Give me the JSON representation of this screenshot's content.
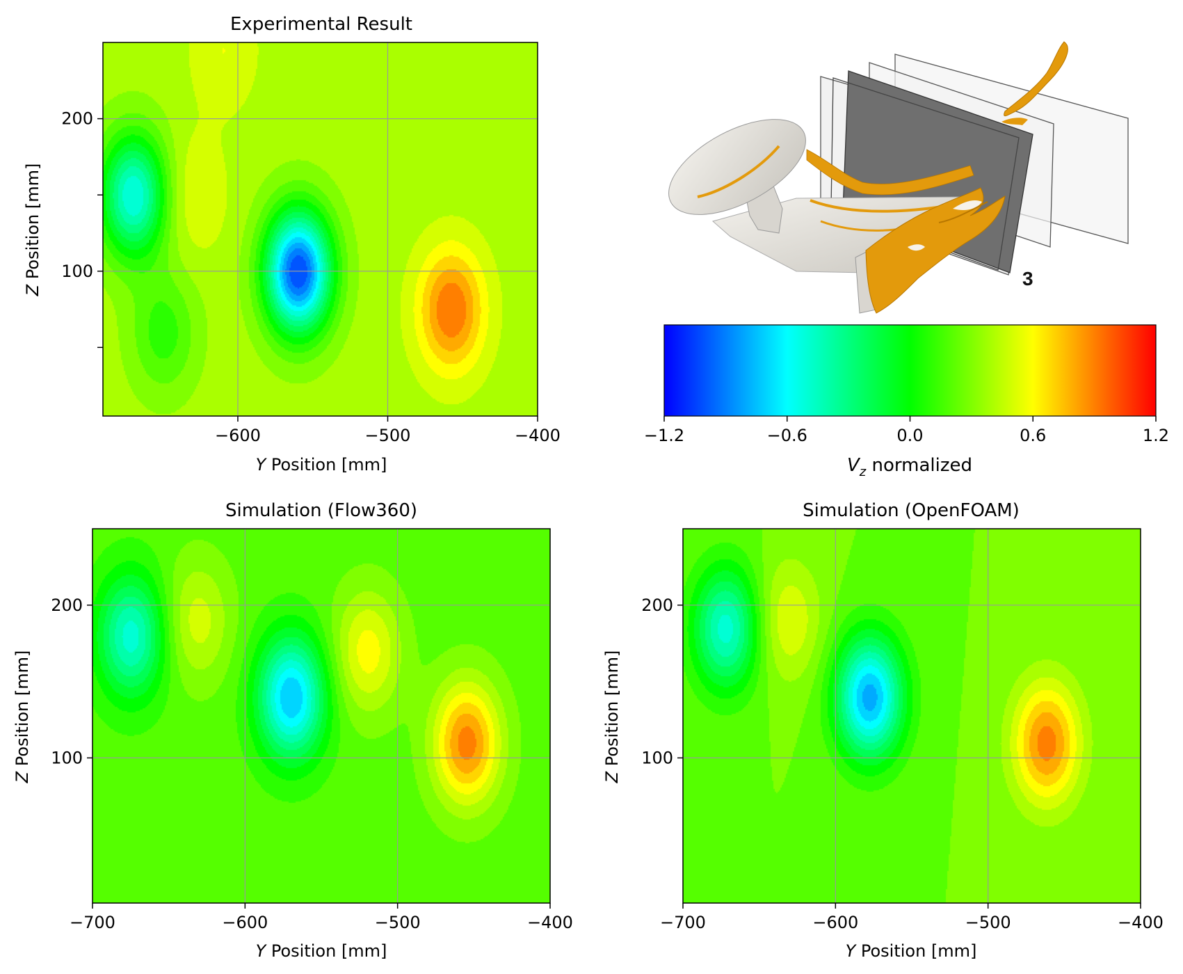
{
  "chart_data": [
    {
      "type": "heatmap",
      "title": "Experimental Result",
      "xlabel_italic": "Y",
      "xlabel": " Position [mm]",
      "ylabel_italic": "Z",
      "ylabel": " Position [mm]",
      "xlim": [
        -690,
        -400
      ],
      "ylim": [
        5,
        250
      ],
      "xticks": [
        -600,
        -500,
        -400
      ],
      "xtick_labels": [
        "−600",
        "−500",
        "−400"
      ],
      "yticks": [
        100,
        200
      ],
      "ytick_labels": [
        "100",
        "200"
      ],
      "minor_yticks": [
        50,
        150
      ],
      "grid": true,
      "background_value": 0.4,
      "features": [
        {
          "x": -670,
          "y": 150,
          "value": -0.55
        },
        {
          "x": -630,
          "y": 150,
          "value": 0.55
        },
        {
          "x": -560,
          "y": 100,
          "value": -1.05
        },
        {
          "x": -458,
          "y": 75,
          "value": 0.95
        },
        {
          "x": -610,
          "y": 245,
          "value": 0.55
        },
        {
          "x": -650,
          "y": 60,
          "value": 0.1
        }
      ]
    },
    {
      "type": "heatmap",
      "title": "Simulation (Flow360)",
      "xlabel_italic": "Y",
      "xlabel": " Position [mm]",
      "ylabel_italic": "Z",
      "ylabel": " Position [mm]",
      "xlim": [
        -700,
        -400
      ],
      "ylim": [
        5,
        250
      ],
      "xticks": [
        -700,
        -600,
        -500,
        -400
      ],
      "xtick_labels": [
        "−700",
        "−600",
        "−500",
        "−400"
      ],
      "yticks": [
        100,
        200
      ],
      "ytick_labels": [
        "100",
        "200"
      ],
      "grid": true,
      "background_value": 0.2,
      "features": [
        {
          "x": -675,
          "y": 180,
          "value": -0.5
        },
        {
          "x": -632,
          "y": 190,
          "value": 0.5
        },
        {
          "x": -570,
          "y": 140,
          "value": -0.75
        },
        {
          "x": -520,
          "y": 170,
          "value": 0.6
        },
        {
          "x": -455,
          "y": 110,
          "value": 0.9
        }
      ]
    },
    {
      "type": "heatmap",
      "title": "Simulation (OpenFOAM)",
      "xlabel_italic": "Y",
      "xlabel": " Position [mm]",
      "ylabel_italic": "Z",
      "ylabel": " Position [mm]",
      "xlim": [
        -700,
        -400
      ],
      "ylim": [
        5,
        250
      ],
      "xticks": [
        -700,
        -600,
        -500,
        -400
      ],
      "xtick_labels": [
        "−700",
        "−600",
        "−500",
        "−400"
      ],
      "yticks": [
        100,
        200
      ],
      "ytick_labels": [
        "100",
        "200"
      ],
      "grid": true,
      "background_value": 0.25,
      "features": [
        {
          "x": -672,
          "y": 185,
          "value": -0.5
        },
        {
          "x": -632,
          "y": 190,
          "value": 0.55
        },
        {
          "x": -578,
          "y": 140,
          "value": -0.8
        },
        {
          "x": -462,
          "y": 110,
          "value": 0.9
        }
      ]
    }
  ],
  "colorbar": {
    "label_italic_base": "V",
    "label_subscript": "z",
    "label_suffix": " normalized",
    "range": [
      -1.2,
      1.2
    ],
    "ticks": [
      -1.2,
      -0.6,
      0.0,
      0.6,
      1.2
    ],
    "tick_labels": [
      "−1.2",
      "−0.6",
      "0.0",
      "0.6",
      "1.2"
    ],
    "colors": [
      "#0000ff",
      "#00ffff",
      "#00ff00",
      "#ffff00",
      "#ff0000"
    ]
  },
  "render": {
    "plane_label": "3",
    "surface_color": "#e2dfd9",
    "isosurface_color": "#e39a0c",
    "plane_color": "#6f6f6f"
  }
}
